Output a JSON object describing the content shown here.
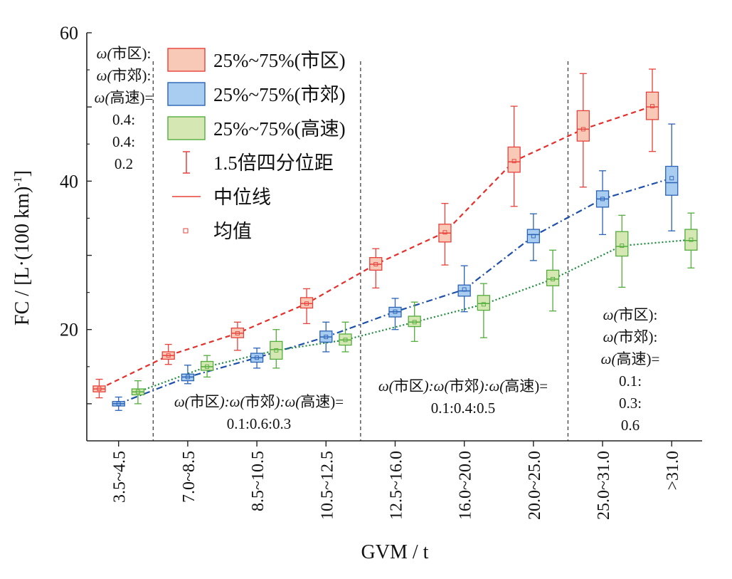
{
  "chart_data": {
    "type": "box",
    "ylabel": "FC / [L·(100 km)",
    "ylabel_sup": "-1",
    "ylabel_close": "]",
    "xlabel": "GVM / t",
    "ylim": [
      5,
      60
    ],
    "yticks": [
      "20",
      "40",
      "60"
    ],
    "categories": [
      "3.5~4.5",
      "7.0~8.5",
      "8.5~10.5",
      "10.5~12.5",
      "12.5~16.0",
      "16.0~20.0",
      "20.0~25.0",
      "25.0~31.0",
      ">31.0"
    ],
    "colors": {
      "urban": {
        "stroke": "#e8403a",
        "fill": "#f8c9b7",
        "line": "#e3302c"
      },
      "suburban": {
        "stroke": "#2a62b6",
        "fill": "#a9cdf0",
        "line": "#1f50a8"
      },
      "highway": {
        "stroke": "#52ad3c",
        "fill": "#d5e8b3",
        "line": "#1b8a3a"
      }
    },
    "series": [
      {
        "name": "市区",
        "key": "urban",
        "boxes": [
          {
            "cat": 0,
            "min": 10.8,
            "q1": 11.6,
            "median": 12.0,
            "q3": 12.4,
            "max": 13.3,
            "mean": 12.0
          },
          {
            "cat": 1,
            "min": 15.3,
            "q1": 16.0,
            "median": 16.5,
            "q3": 17.0,
            "max": 18.0,
            "mean": 16.5
          },
          {
            "cat": 2,
            "min": 17.2,
            "q1": 18.9,
            "median": 19.5,
            "q3": 20.2,
            "max": 21.0,
            "mean": 19.5
          },
          {
            "cat": 3,
            "min": 20.8,
            "q1": 22.9,
            "median": 23.5,
            "q3": 24.3,
            "max": 25.5,
            "mean": 23.5
          },
          {
            "cat": 4,
            "min": 25.6,
            "q1": 28.0,
            "median": 28.8,
            "q3": 29.7,
            "max": 30.9,
            "mean": 28.8
          },
          {
            "cat": 5,
            "min": 28.7,
            "q1": 31.8,
            "median": 33.0,
            "q3": 34.2,
            "max": 37.0,
            "mean": 33.1
          },
          {
            "cat": 6,
            "min": 36.6,
            "q1": 41.2,
            "median": 42.6,
            "q3": 44.6,
            "max": 50.1,
            "mean": 42.7
          },
          {
            "cat": 7,
            "min": 39.2,
            "q1": 45.4,
            "median": 47.0,
            "q3": 49.5,
            "max": 54.5,
            "mean": 47.0
          },
          {
            "cat": 8,
            "min": 44.0,
            "q1": 48.3,
            "median": 50.0,
            "q3": 52.0,
            "max": 55.1,
            "mean": 50.1
          }
        ],
        "trend": [
          12.0,
          16.5,
          19.5,
          23.5,
          28.8,
          33.1,
          42.7,
          47.0,
          50.1
        ]
      },
      {
        "name": "市郊",
        "key": "suburban",
        "boxes": [
          {
            "cat": 0,
            "min": 9.1,
            "q1": 9.7,
            "median": 10.0,
            "q3": 10.3,
            "max": 10.9,
            "mean": 10.0
          },
          {
            "cat": 1,
            "min": 12.7,
            "q1": 13.1,
            "median": 13.6,
            "q3": 14.0,
            "max": 15.2,
            "mean": 13.6
          },
          {
            "cat": 2,
            "min": 14.8,
            "q1": 15.6,
            "median": 16.2,
            "q3": 16.8,
            "max": 17.5,
            "mean": 16.2
          },
          {
            "cat": 3,
            "min": 17.0,
            "q1": 18.3,
            "median": 19.0,
            "q3": 19.8,
            "max": 21.0,
            "mean": 19.0
          },
          {
            "cat": 4,
            "min": 20.0,
            "q1": 21.7,
            "median": 22.4,
            "q3": 23.0,
            "max": 24.2,
            "mean": 22.4
          },
          {
            "cat": 5,
            "min": 22.4,
            "q1": 24.5,
            "median": 25.2,
            "q3": 26.0,
            "max": 28.6,
            "mean": 25.4
          },
          {
            "cat": 6,
            "min": 29.3,
            "q1": 31.7,
            "median": 32.8,
            "q3": 33.5,
            "max": 35.6,
            "mean": 32.6
          },
          {
            "cat": 7,
            "min": 32.8,
            "q1": 36.5,
            "median": 37.6,
            "q3": 38.7,
            "max": 41.4,
            "mean": 37.6
          },
          {
            "cat": 8,
            "min": 33.3,
            "q1": 38.1,
            "median": 39.8,
            "q3": 42.0,
            "max": 47.7,
            "mean": 40.4
          }
        ],
        "trend": [
          10.0,
          13.6,
          16.2,
          19.0,
          22.4,
          25.4,
          32.6,
          37.6,
          40.4
        ]
      },
      {
        "name": "高速",
        "key": "highway",
        "boxes": [
          {
            "cat": 0,
            "min": 10.0,
            "q1": 11.2,
            "median": 11.6,
            "q3": 12.0,
            "max": 13.1,
            "mean": 11.6
          },
          {
            "cat": 1,
            "min": 13.6,
            "q1": 14.5,
            "median": 15.0,
            "q3": 15.7,
            "max": 16.5,
            "mean": 15.0
          },
          {
            "cat": 2,
            "min": 14.8,
            "q1": 16.0,
            "median": 17.3,
            "q3": 18.4,
            "max": 20.0,
            "mean": 17.2
          },
          {
            "cat": 3,
            "min": 17.0,
            "q1": 17.9,
            "median": 18.6,
            "q3": 19.4,
            "max": 21.0,
            "mean": 18.6
          },
          {
            "cat": 4,
            "min": 18.4,
            "q1": 20.4,
            "median": 21.0,
            "q3": 21.8,
            "max": 23.7,
            "mean": 21.0
          },
          {
            "cat": 5,
            "min": 18.9,
            "q1": 22.6,
            "median": 23.5,
            "q3": 24.6,
            "max": 26.2,
            "mean": 23.4
          },
          {
            "cat": 6,
            "min": 22.5,
            "q1": 25.9,
            "median": 26.8,
            "q3": 28.0,
            "max": 30.7,
            "mean": 26.8
          },
          {
            "cat": 7,
            "min": 25.7,
            "q1": 29.9,
            "median": 31.2,
            "q3": 33.2,
            "max": 35.4,
            "mean": 31.3
          },
          {
            "cat": 8,
            "min": 28.3,
            "q1": 30.7,
            "median": 32.0,
            "q3": 33.5,
            "max": 35.7,
            "mean": 32.1
          }
        ],
        "trend": [
          11.6,
          15.0,
          17.2,
          18.6,
          21.0,
          23.4,
          26.8,
          31.3,
          32.1
        ]
      }
    ],
    "legend": [
      {
        "label": "25%~75%(市区)",
        "kind": "box",
        "key": "urban"
      },
      {
        "label": "25%~75%(市郊)",
        "kind": "box",
        "key": "suburban"
      },
      {
        "label": "25%~75%(高速)",
        "kind": "box",
        "key": "highway"
      },
      {
        "label": "1.5倍四分位距",
        "kind": "whisker",
        "key": "urban"
      },
      {
        "label": "中位线",
        "kind": "median",
        "key": "urban"
      },
      {
        "label": "均值",
        "kind": "mean",
        "key": "urban"
      }
    ],
    "dividers_after_category": [
      0,
      3,
      6
    ],
    "annotations": [
      {
        "id": "weights-1",
        "lines": [
          "ω(市区):",
          "ω(市郊):",
          "ω(高速)=",
          "0.4:",
          "0.4:",
          "0.2"
        ]
      },
      {
        "id": "weights-2",
        "lines": [
          "ω(市区):ω(市郊):ω(高速)=",
          "0.1:0.6:0.3"
        ]
      },
      {
        "id": "weights-3",
        "lines": [
          "ω(市区):ω(市郊):ω(高速)=",
          "0.1:0.4:0.5"
        ]
      },
      {
        "id": "weights-4",
        "lines": [
          "ω(市区):",
          "ω(市郊):",
          "ω(高速)=",
          "0.1:",
          "0.3:",
          "0.6"
        ]
      }
    ]
  }
}
